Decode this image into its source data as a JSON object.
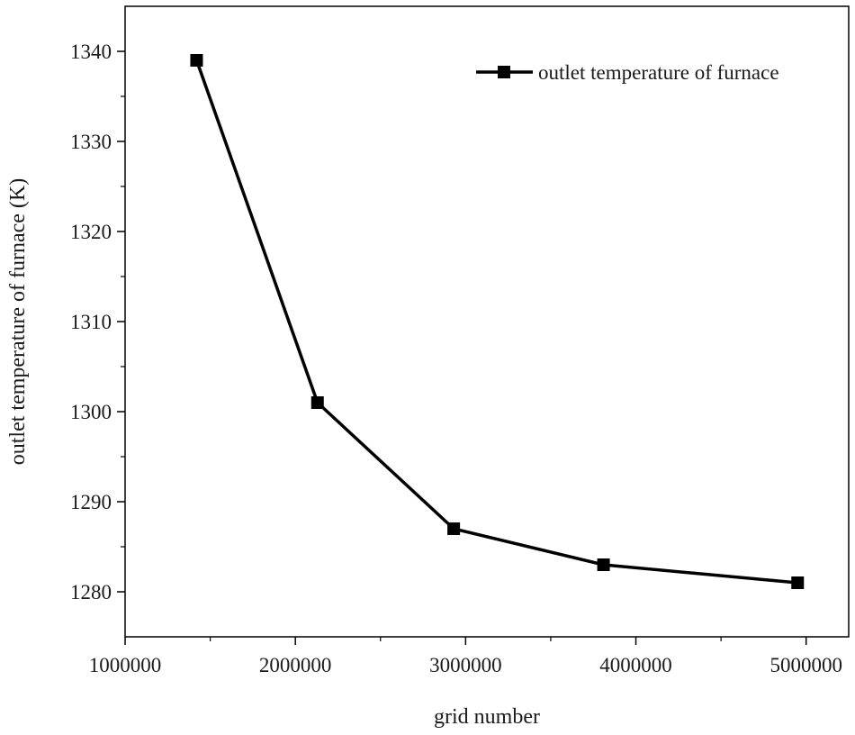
{
  "chart_data": {
    "type": "line",
    "title": "",
    "xlabel": "grid number",
    "ylabel": "outlet temperature of furnace (K)",
    "xlim": [
      1000000,
      5250000
    ],
    "ylim": [
      1275,
      1345
    ],
    "x_ticks": [
      1000000,
      2000000,
      3000000,
      4000000,
      5000000
    ],
    "x_tick_labels": [
      "1000000",
      "2000000",
      "3000000",
      "4000000",
      "5000000"
    ],
    "y_ticks": [
      1280,
      1290,
      1300,
      1310,
      1320,
      1330,
      1340
    ],
    "y_tick_labels": [
      "1280",
      "1290",
      "1300",
      "1310",
      "1320",
      "1330",
      "1340"
    ],
    "grid": false,
    "legend_position": "top-right",
    "series": [
      {
        "name": "outlet temperature of furnace",
        "color": "#000000",
        "marker": "square",
        "x": [
          1420000,
          2130000,
          2930000,
          3810000,
          4950000
        ],
        "y": [
          1339,
          1301,
          1287,
          1283,
          1281
        ]
      }
    ]
  }
}
